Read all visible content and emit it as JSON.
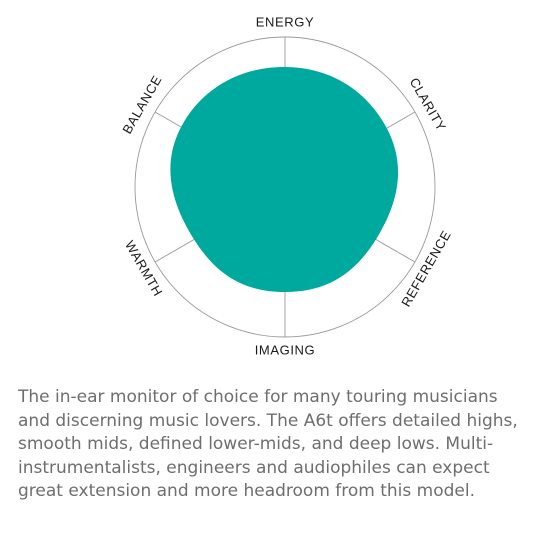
{
  "chart_data": {
    "type": "radar",
    "axes": [
      "BALANCE",
      "ENERGY",
      "CLARITY",
      "REFERENCE",
      "IMAGING",
      "WARMTH"
    ],
    "scale_max": 3,
    "grid_levels": [
      1,
      2,
      3
    ],
    "series": [
      {
        "values": [
          2.4,
          2.4,
          2.35,
          2.1,
          2.1,
          2.1
        ]
      }
    ],
    "colors": {
      "fill": "#00a99d",
      "grid": "#9a9a9a",
      "inner_ring": "#2b2b2b"
    }
  },
  "description": "The in-ear monitor of choice for many touring musicians and discerning music lovers. The A6t offers detailed highs, smooth mids, defined lower-mids, and deep lows. Multi-instrumentalists, engineers and audiophiles can expect great extension and more headroom from this model."
}
